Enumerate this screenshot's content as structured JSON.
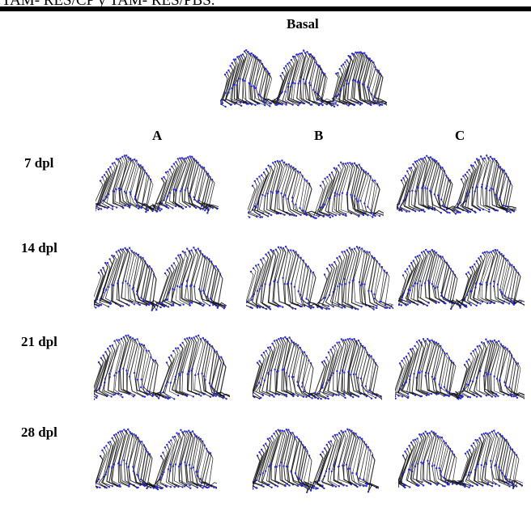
{
  "caption_fragment": "TAM- RES/CP y TAM- RES/PBS.",
  "basal_label": "Basal",
  "columns": [
    {
      "id": "A",
      "label": "A"
    },
    {
      "id": "B",
      "label": "B"
    },
    {
      "id": "C",
      "label": "C"
    }
  ],
  "rows": [
    {
      "id": "7dpl",
      "label": "7 dpl"
    },
    {
      "id": "14dpl",
      "label": "14 dpl"
    },
    {
      "id": "21dpl",
      "label": "21 dpl"
    },
    {
      "id": "28dpl",
      "label": "28 dpl"
    }
  ],
  "colors": {
    "stick": "#111111",
    "marker": "#2a2ad8"
  },
  "figure_description": "Stick-figure gait diagrams (two steps each); panels for groups A, B, C at 7, 14, 21 and 28 dpl, plus a basal reference panel."
}
